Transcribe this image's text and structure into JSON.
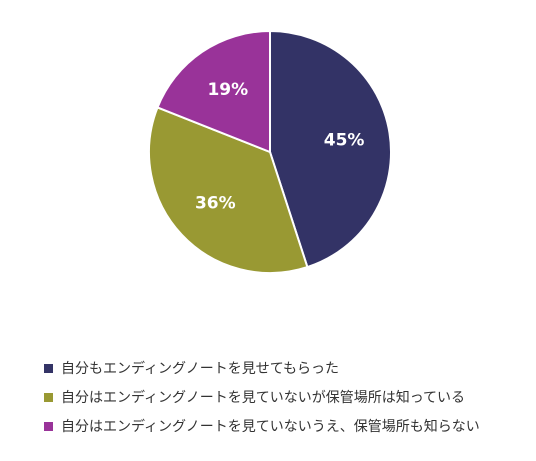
{
  "chart_data": {
    "type": "pie",
    "title": "",
    "categories": [
      "自分もエンディングノートを見せてもらった",
      "自分はエンディングノートを見ていないが保管場所は知っている",
      "自分はエンディングノートを見ていないうえ、保管場所も知らない"
    ],
    "values": [
      45,
      36,
      19
    ],
    "value_labels": [
      "45%",
      "36%",
      "19%"
    ],
    "colors": [
      "#333366",
      "#999933",
      "#993399"
    ],
    "legend_position": "bottom-left",
    "start_angle": "12 o'clock",
    "direction": "clockwise"
  }
}
